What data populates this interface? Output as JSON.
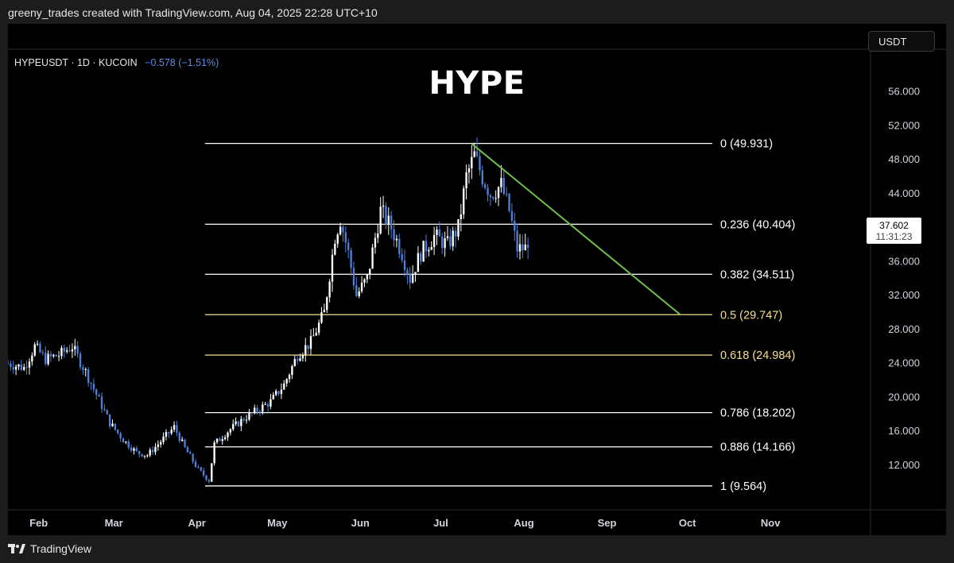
{
  "header": {
    "attribution": "greeny_trades created with TradingView.com, Aug 04, 2025 22:28 UTC+10"
  },
  "symbol": {
    "label": "HYPEUSDT · 1D · KUCOIN",
    "change": "−0.578 (−1.51%)"
  },
  "title": "HYPE",
  "currency_button": "USDT",
  "last_price": {
    "value": "37.602",
    "countdown": "11:31:23"
  },
  "footer": {
    "brand": "TradingView"
  },
  "colors": {
    "background": "#000000",
    "candle_up": "#ffffff",
    "candle_down": "#4e7fd8",
    "fib_default": "#ffffff",
    "fib_highlight": "#f5e090",
    "trendline": "#6cc04a"
  },
  "chart_data": {
    "type": "candlestick",
    "title": "HYPE",
    "ylim": [
      6,
      60
    ],
    "y_ticks": [
      "56.000",
      "52.000",
      "48.000",
      "44.000",
      "40.000",
      "36.000",
      "32.000",
      "28.000",
      "24.000",
      "20.000",
      "16.000",
      "12.000"
    ],
    "y_tick_values": [
      56,
      52,
      48,
      44,
      40,
      36,
      32,
      28,
      24,
      20,
      16,
      12
    ],
    "x_ticks": [
      "Feb",
      "Mar",
      "Apr",
      "May",
      "Jun",
      "Jul",
      "Aug",
      "Sep",
      "Oct",
      "Nov"
    ],
    "x_tick_dates": [
      "2025-02-01",
      "2025-03-01",
      "2025-04-01",
      "2025-05-01",
      "2025-06-01",
      "2025-07-01",
      "2025-08-01",
      "2025-09-01",
      "2025-10-01",
      "2025-11-01"
    ],
    "x_range": [
      "2025-01-22",
      "2025-11-30"
    ],
    "fib_retracement": {
      "start": "2025-04-07",
      "end": "2025-10-01",
      "levels": [
        {
          "label": "0 (49.931)",
          "value": 49.931,
          "color": "#ffffff"
        },
        {
          "label": "0.236 (40.404)",
          "value": 40.404,
          "color": "#ffffff"
        },
        {
          "label": "0.382 (34.511)",
          "value": 34.511,
          "color": "#ffffff"
        },
        {
          "label": "0.5 (29.747)",
          "value": 29.747,
          "color": "#f5e090"
        },
        {
          "label": "0.618 (24.984)",
          "value": 24.984,
          "color": "#f5e090"
        },
        {
          "label": "0.786 (18.202)",
          "value": 18.202,
          "color": "#ffffff"
        },
        {
          "label": "0.886 (14.166)",
          "value": 14.166,
          "color": "#ffffff"
        },
        {
          "label": "1 (9.564)",
          "value": 9.564,
          "color": "#ffffff"
        }
      ]
    },
    "trendline": {
      "x": [
        "2025-07-14",
        "2025-09-30"
      ],
      "y": [
        49.9,
        29.7
      ]
    },
    "price_anchors": {
      "dates": [
        "2025-01-22",
        "2025-01-28",
        "2025-02-01",
        "2025-02-05",
        "2025-02-10",
        "2025-02-15",
        "2025-02-20",
        "2025-02-26",
        "2025-03-01",
        "2025-03-06",
        "2025-03-11",
        "2025-03-15",
        "2025-03-20",
        "2025-03-25",
        "2025-03-29",
        "2025-04-03",
        "2025-04-07",
        "2025-04-09",
        "2025-04-14",
        "2025-04-20",
        "2025-04-25",
        "2025-04-30",
        "2025-05-05",
        "2025-05-10",
        "2025-05-15",
        "2025-05-20",
        "2025-05-24",
        "2025-05-26",
        "2025-05-29",
        "2025-06-01",
        "2025-06-05",
        "2025-06-10",
        "2025-06-14",
        "2025-06-18",
        "2025-06-21",
        "2025-06-25",
        "2025-06-30",
        "2025-07-05",
        "2025-07-09",
        "2025-07-12",
        "2025-07-15",
        "2025-07-18",
        "2025-07-21",
        "2025-07-25",
        "2025-07-28",
        "2025-07-31",
        "2025-08-04"
      ],
      "closes": [
        24,
        23.5,
        26,
        24.5,
        25,
        26,
        23,
        19,
        17,
        15,
        13.5,
        13.2,
        14.8,
        16.5,
        14,
        11.5,
        10.2,
        14.5,
        16,
        17.5,
        18.5,
        19.5,
        21.5,
        25,
        26.5,
        30,
        39,
        41,
        37,
        32,
        34,
        42,
        40,
        37,
        34,
        37,
        39,
        38,
        40,
        46,
        48.5,
        46,
        44,
        45,
        42,
        37.5,
        37.6
      ]
    }
  }
}
